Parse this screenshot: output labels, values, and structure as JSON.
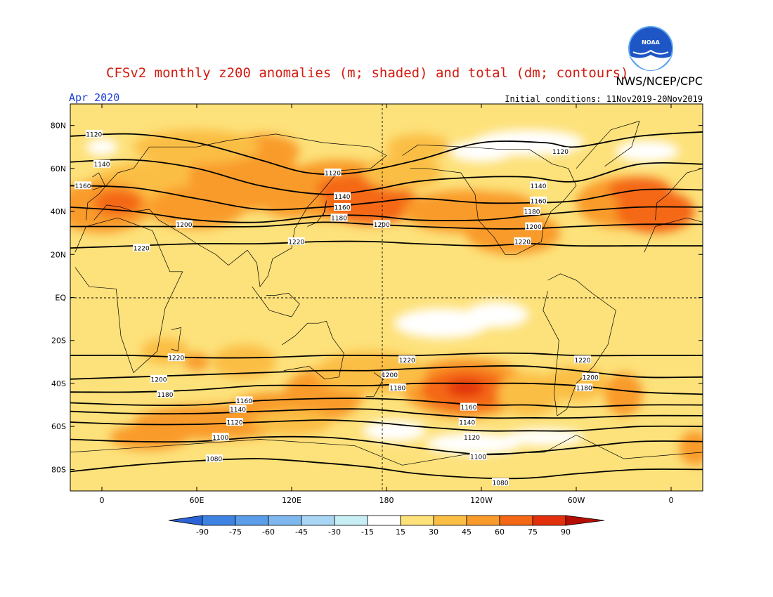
{
  "title": "CFSv2 monthly z200 anomalies (m; shaded) and total (dm; contours)",
  "subtitle_left": "Apr 2020",
  "subtitle_right": "Initial conditions: 11Nov2019-20Nov2019",
  "credit": "NWS/NCEP/CPC",
  "logo_text": "NOAA",
  "axes": {
    "lat_ticks": [
      {
        "lat": 80,
        "label": "80N"
      },
      {
        "lat": 60,
        "label": "60N"
      },
      {
        "lat": 40,
        "label": "40N"
      },
      {
        "lat": 20,
        "label": "20N"
      },
      {
        "lat": 0,
        "label": "EQ"
      },
      {
        "lat": -20,
        "label": "20S"
      },
      {
        "lat": -40,
        "label": "40S"
      },
      {
        "lat": -60,
        "label": "60S"
      },
      {
        "lat": -80,
        "label": "80S"
      }
    ],
    "lon_ticks": [
      {
        "lon": 0,
        "label": "0"
      },
      {
        "lon": 60,
        "label": "60E"
      },
      {
        "lon": 120,
        "label": "120E"
      },
      {
        "lon": 180,
        "label": "180"
      },
      {
        "lon": 240,
        "label": "120W"
      },
      {
        "lon": 300,
        "label": "60W"
      },
      {
        "lon": 360,
        "label": "0"
      }
    ],
    "lon_range": [
      -20,
      380
    ],
    "lat_range": [
      -90,
      90
    ]
  },
  "colorbar": {
    "labels": [
      "-90",
      "-75",
      "-60",
      "-45",
      "-30",
      "-15",
      "15",
      "30",
      "45",
      "60",
      "75",
      "90"
    ],
    "colors": [
      "#2b64d6",
      "#3e82e2",
      "#5a9de8",
      "#7eb8ef",
      "#a8d6f4",
      "#c8eef5",
      "#ffffff",
      "#fde17a",
      "#fbbe44",
      "#f99b2a",
      "#f46714",
      "#e3300c",
      "#b60d04"
    ]
  },
  "fill_colors": {
    "level1": "#fde17a",
    "level2": "#fbbe44",
    "level3": "#f99b2a",
    "level4": "#f46714",
    "level5": "#e3300c",
    "neutral": "#ffffff"
  },
  "contours": [
    {
      "value": 1120,
      "label": "1120",
      "points": [
        [
          -20,
          75
        ],
        [
          20,
          76
        ],
        [
          60,
          72
        ],
        [
          100,
          64
        ],
        [
          130,
          58
        ],
        [
          160,
          58
        ],
        [
          200,
          64
        ],
        [
          240,
          72
        ],
        [
          280,
          72
        ],
        [
          300,
          70
        ],
        [
          340,
          75
        ],
        [
          380,
          77
        ]
      ],
      "labels_at": [
        [
          -5,
          76
        ],
        [
          146,
          58
        ],
        [
          290,
          68
        ]
      ]
    },
    {
      "value": 1140,
      "label": "1140",
      "points": [
        [
          -20,
          63
        ],
        [
          20,
          64
        ],
        [
          60,
          60
        ],
        [
          100,
          52
        ],
        [
          140,
          48
        ],
        [
          170,
          50
        ],
        [
          200,
          54
        ],
        [
          240,
          56
        ],
        [
          270,
          56
        ],
        [
          300,
          54
        ],
        [
          340,
          62
        ],
        [
          380,
          62
        ]
      ],
      "labels_at": [
        [
          0,
          62
        ],
        [
          152,
          47
        ],
        [
          276,
          52
        ]
      ]
    },
    {
      "value": 1160,
      "label": "1160",
      "points": [
        [
          -20,
          52
        ],
        [
          20,
          51
        ],
        [
          60,
          46
        ],
        [
          100,
          41
        ],
        [
          140,
          42
        ],
        [
          170,
          44
        ],
        [
          200,
          46
        ],
        [
          240,
          44
        ],
        [
          270,
          44
        ],
        [
          300,
          45
        ],
        [
          340,
          50
        ],
        [
          380,
          50
        ]
      ],
      "labels_at": [
        [
          -12,
          52
        ],
        [
          152,
          42
        ],
        [
          276,
          45
        ]
      ]
    },
    {
      "value": 1180,
      "label": "1180",
      "points": [
        [
          -20,
          42
        ],
        [
          20,
          40
        ],
        [
          60,
          36
        ],
        [
          100,
          35
        ],
        [
          140,
          38
        ],
        [
          170,
          38
        ],
        [
          200,
          36
        ],
        [
          240,
          36
        ],
        [
          270,
          38
        ],
        [
          300,
          40
        ],
        [
          340,
          42
        ],
        [
          380,
          42
        ]
      ],
      "labels_at": [
        [
          150,
          37
        ],
        [
          272,
          40
        ]
      ]
    },
    {
      "value": 1200,
      "label": "1200",
      "points": [
        [
          -20,
          33
        ],
        [
          20,
          33
        ],
        [
          60,
          33
        ],
        [
          100,
          33
        ],
        [
          140,
          35
        ],
        [
          170,
          34
        ],
        [
          200,
          33
        ],
        [
          240,
          32
        ],
        [
          270,
          32
        ],
        [
          300,
          33
        ],
        [
          340,
          34
        ],
        [
          380,
          34
        ]
      ],
      "labels_at": [
        [
          52,
          34
        ],
        [
          177,
          34
        ],
        [
          273,
          33
        ]
      ]
    },
    {
      "value": 1220,
      "label": "1220",
      "points": [
        [
          -20,
          23
        ],
        [
          20,
          24
        ],
        [
          60,
          25
        ],
        [
          100,
          25
        ],
        [
          140,
          26
        ],
        [
          170,
          26
        ],
        [
          200,
          25
        ],
        [
          240,
          24
        ],
        [
          270,
          25
        ],
        [
          300,
          24
        ],
        [
          340,
          24
        ],
        [
          380,
          24
        ]
      ],
      "labels_at": [
        [
          25,
          23
        ],
        [
          123,
          26
        ],
        [
          266,
          26
        ]
      ]
    },
    {
      "value": 1220,
      "label": "1220",
      "points": [
        [
          -20,
          -27
        ],
        [
          20,
          -27
        ],
        [
          60,
          -28
        ],
        [
          100,
          -28
        ],
        [
          140,
          -27
        ],
        [
          170,
          -27
        ],
        [
          200,
          -27
        ],
        [
          240,
          -26
        ],
        [
          270,
          -26
        ],
        [
          300,
          -27
        ],
        [
          340,
          -27
        ],
        [
          380,
          -27
        ]
      ],
      "labels_at": [
        [
          47,
          -28
        ],
        [
          193,
          -29
        ],
        [
          304,
          -29
        ]
      ]
    },
    {
      "value": 1200,
      "label": "1200",
      "points": [
        [
          -20,
          -38
        ],
        [
          20,
          -37
        ],
        [
          60,
          -36
        ],
        [
          100,
          -35
        ],
        [
          140,
          -34
        ],
        [
          170,
          -34
        ],
        [
          200,
          -33
        ],
        [
          240,
          -32
        ],
        [
          270,
          -32
        ],
        [
          300,
          -34
        ],
        [
          340,
          -37
        ],
        [
          380,
          -37
        ]
      ],
      "labels_at": [
        [
          36,
          -38
        ],
        [
          182,
          -36
        ],
        [
          309,
          -37
        ]
      ]
    },
    {
      "value": 1180,
      "label": "1180",
      "points": [
        [
          -20,
          -44
        ],
        [
          20,
          -44
        ],
        [
          60,
          -43
        ],
        [
          100,
          -41
        ],
        [
          140,
          -41
        ],
        [
          170,
          -41
        ],
        [
          200,
          -40
        ],
        [
          240,
          -40
        ],
        [
          270,
          -40
        ],
        [
          300,
          -41
        ],
        [
          340,
          -44
        ],
        [
          380,
          -45
        ]
      ],
      "labels_at": [
        [
          40,
          -45
        ],
        [
          187,
          -42
        ],
        [
          305,
          -42
        ]
      ]
    },
    {
      "value": 1160,
      "label": "1160",
      "points": [
        [
          -20,
          -49
        ],
        [
          20,
          -50
        ],
        [
          60,
          -50
        ],
        [
          100,
          -48
        ],
        [
          140,
          -47
        ],
        [
          170,
          -47
        ],
        [
          200,
          -48
        ],
        [
          240,
          -50
        ],
        [
          270,
          -50
        ],
        [
          300,
          -51
        ],
        [
          340,
          -50
        ],
        [
          380,
          -50
        ]
      ],
      "labels_at": [
        [
          90,
          -48
        ],
        [
          232,
          -51
        ]
      ]
    },
    {
      "value": 1140,
      "label": "1140",
      "points": [
        [
          -20,
          -53
        ],
        [
          20,
          -54
        ],
        [
          60,
          -54
        ],
        [
          100,
          -53
        ],
        [
          140,
          -52
        ],
        [
          170,
          -52
        ],
        [
          200,
          -54
        ],
        [
          240,
          -56
        ],
        [
          270,
          -56
        ],
        [
          300,
          -56
        ],
        [
          340,
          -55
        ],
        [
          380,
          -55
        ]
      ],
      "labels_at": [
        [
          86,
          -52
        ],
        [
          231,
          -58
        ]
      ]
    },
    {
      "value": 1120,
      "label": "1120",
      "points": [
        [
          -20,
          -58
        ],
        [
          20,
          -59
        ],
        [
          60,
          -59
        ],
        [
          100,
          -58
        ],
        [
          140,
          -57
        ],
        [
          170,
          -58
        ],
        [
          200,
          -60
        ],
        [
          240,
          -62
        ],
        [
          270,
          -62
        ],
        [
          300,
          -62
        ],
        [
          340,
          -60
        ],
        [
          380,
          -60
        ]
      ],
      "labels_at": [
        [
          84,
          -58
        ],
        [
          234,
          -65
        ]
      ]
    },
    {
      "value": 1100,
      "label": "1100",
      "points": [
        [
          -20,
          -66
        ],
        [
          20,
          -67
        ],
        [
          60,
          -67
        ],
        [
          100,
          -65
        ],
        [
          140,
          -65
        ],
        [
          170,
          -67
        ],
        [
          200,
          -70
        ],
        [
          240,
          -73
        ],
        [
          270,
          -72
        ],
        [
          300,
          -70
        ],
        [
          340,
          -67
        ],
        [
          380,
          -67
        ]
      ],
      "labels_at": [
        [
          75,
          -65
        ],
        [
          238,
          -74
        ]
      ]
    },
    {
      "value": 1080,
      "label": "1080",
      "points": [
        [
          -20,
          -81
        ],
        [
          20,
          -78
        ],
        [
          60,
          -76
        ],
        [
          100,
          -75
        ],
        [
          140,
          -77
        ],
        [
          170,
          -79
        ],
        [
          200,
          -82
        ],
        [
          240,
          -84
        ],
        [
          270,
          -84
        ],
        [
          300,
          -82
        ],
        [
          340,
          -80
        ],
        [
          380,
          -80
        ]
      ],
      "labels_at": [
        [
          71,
          -75
        ],
        [
          252,
          -86
        ]
      ]
    }
  ]
}
